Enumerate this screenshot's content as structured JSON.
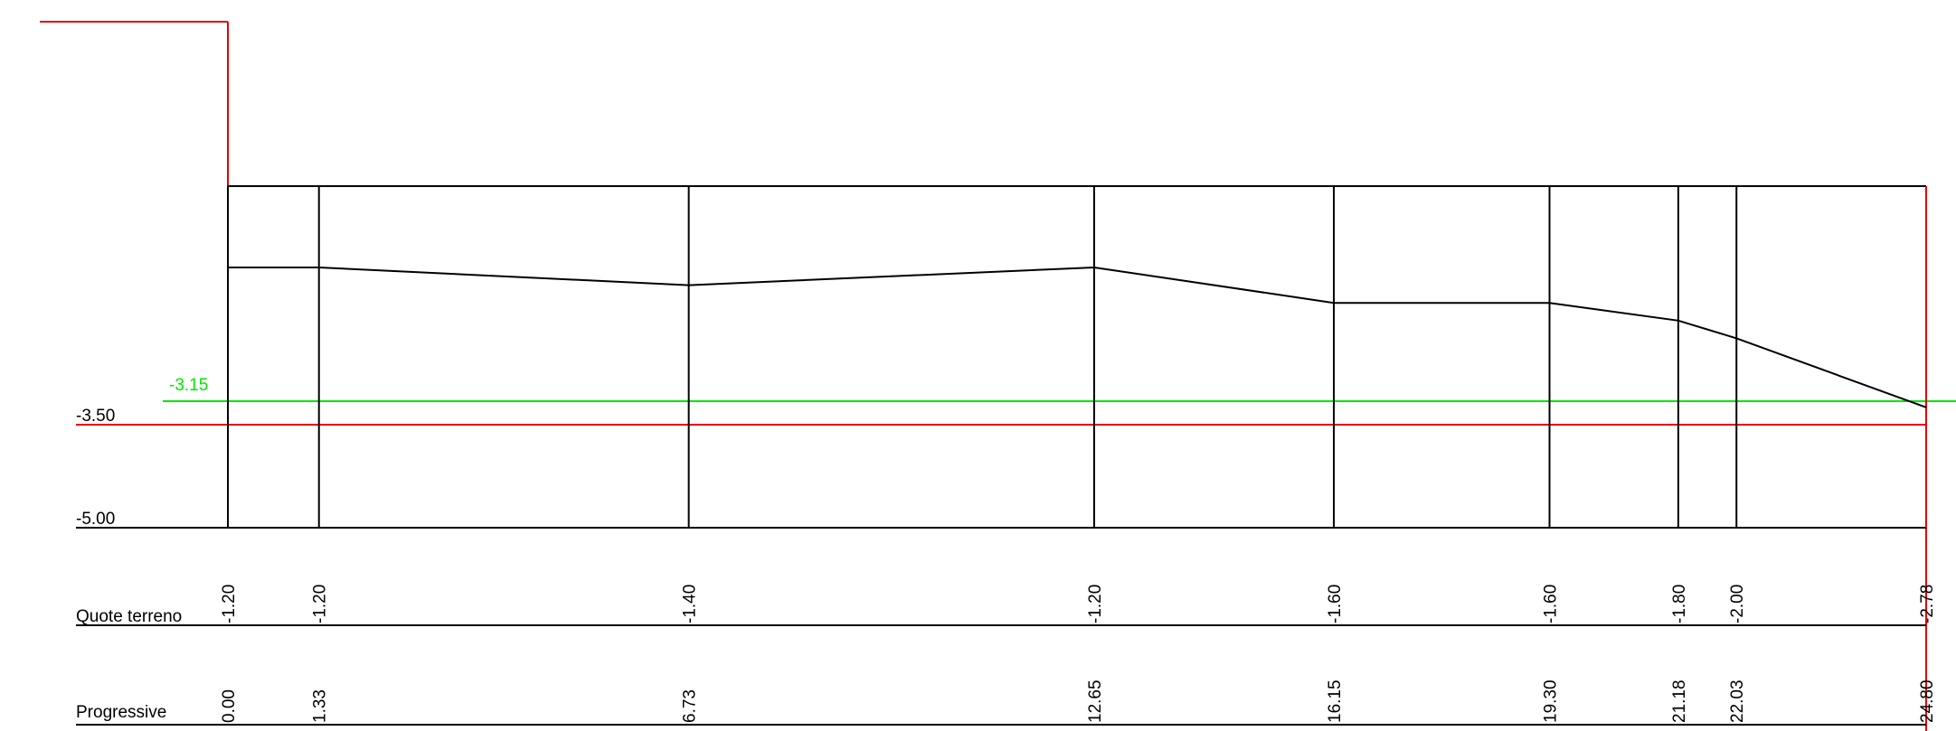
{
  "levels": {
    "water_table": {
      "label": "-3.15",
      "value": -3.15,
      "color": "#00e600"
    },
    "excavation": {
      "label": "-3.50",
      "value": -3.5,
      "color": "#e60000"
    },
    "datum": {
      "label": "-5.00",
      "value": -5.0,
      "color": "#000000"
    }
  },
  "rows": {
    "terrain_label": "Quote terreno",
    "progressive_label": "Progressive"
  },
  "stations": [
    {
      "progressive": "0.00",
      "terrain": "-1.20",
      "x": 0.0,
      "z": -1.2
    },
    {
      "progressive": "1.33",
      "terrain": "-1.20",
      "x": 1.33,
      "z": -1.2
    },
    {
      "progressive": "6.73",
      "terrain": "-1.40",
      "x": 6.73,
      "z": -1.4
    },
    {
      "progressive": "12.65",
      "terrain": "-1.20",
      "x": 12.65,
      "z": -1.2
    },
    {
      "progressive": "16.15",
      "terrain": "-1.60",
      "x": 16.15,
      "z": -1.6
    },
    {
      "progressive": "19.30",
      "terrain": "-1.60",
      "x": 19.3,
      "z": -1.6
    },
    {
      "progressive": "21.18",
      "terrain": "-1.80",
      "x": 21.18,
      "z": -1.8
    },
    {
      "progressive": "22.03",
      "terrain": "-2.00",
      "x": 22.03,
      "z": -2.0
    },
    {
      "progressive": "24.80",
      "terrain": "-2.78",
      "x": 24.8,
      "z": -2.78
    }
  ],
  "colors": {
    "ink": "#000000",
    "red": "#e60000",
    "green": "#00e600"
  }
}
